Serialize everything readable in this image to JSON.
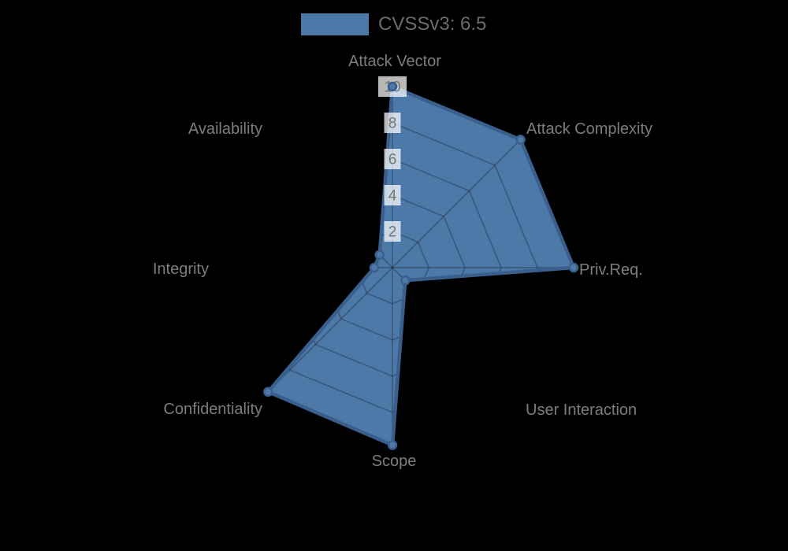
{
  "page": {
    "background": "#000000"
  },
  "chart_data": {
    "type": "radar",
    "legend": {
      "label": "CVSSv3: 6.5",
      "position": "top-center"
    },
    "categories": [
      "Attack Vector",
      "Attack Complexity",
      "Priv.Req.",
      "User Interaction",
      "Scope",
      "Confidentiality",
      "Integrity",
      "Availability"
    ],
    "series": [
      {
        "name": "CVSSv3: 6.5",
        "values": [
          10,
          10,
          10,
          1,
          9.8,
          9.7,
          1,
          1
        ],
        "fill_color": "#4d79a8",
        "line_color": "#3a5f8c"
      }
    ],
    "radial_ticks": [
      2,
      4,
      6,
      8,
      10
    ],
    "rlim": [
      0,
      10
    ],
    "grid": {
      "shape": "polygon-web",
      "spokes": 8,
      "line_color": "rgba(0,0,0,0.25)",
      "note": "gridlines only visible where they overlap the filled series"
    },
    "tick_label_style": {
      "text_color": "#757575",
      "box_color": "rgba(255,255,255,0.72)"
    },
    "category_label_color": "#7d7d7d",
    "legend_text_color": "#6c6c6c"
  }
}
